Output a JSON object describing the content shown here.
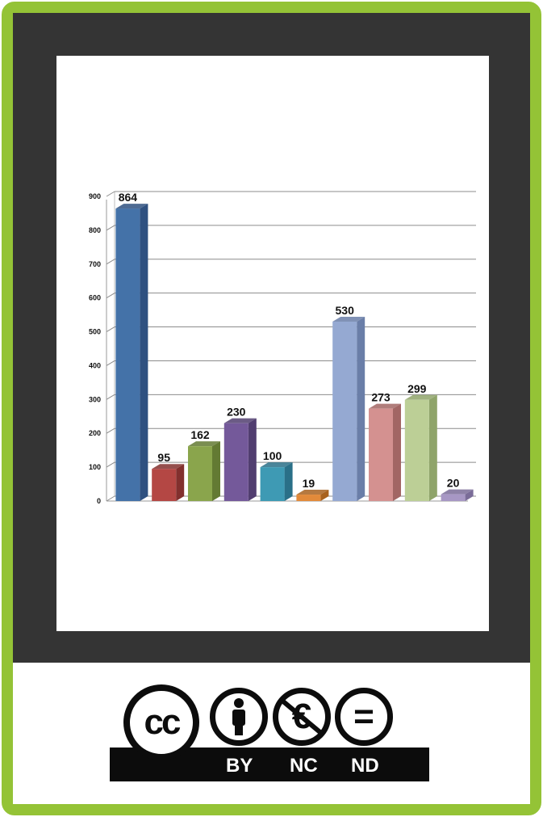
{
  "chart_data": {
    "type": "bar",
    "categories": [
      "",
      "",
      "",
      "",
      "",
      "",
      "",
      "",
      "",
      ""
    ],
    "values": [
      864,
      95,
      162,
      230,
      100,
      19,
      530,
      273,
      299,
      20
    ],
    "data_labels": [
      "864",
      "95",
      "162",
      "230",
      "100",
      "19",
      "530",
      "273",
      "299",
      "20"
    ],
    "colors": [
      "#4472a8",
      "#b44744",
      "#8aa54c",
      "#74599a",
      "#3e9ab4",
      "#e28a3a",
      "#95a9d2",
      "#d49190",
      "#bccf96",
      "#a797c4"
    ],
    "side_colors": [
      "#2f5180",
      "#82302e",
      "#637a33",
      "#513e70",
      "#2a7088",
      "#a8621f",
      "#6a7ea8",
      "#a26664",
      "#8fa46a",
      "#7a6c98"
    ],
    "ylim": [
      0,
      900
    ],
    "yticks": [
      0,
      100,
      200,
      300,
      400,
      500,
      600,
      700,
      800,
      900
    ],
    "ytick_labels": [
      "0",
      "100",
      "200",
      "300",
      "400",
      "500",
      "600",
      "700",
      "800",
      "900"
    ],
    "title": "",
    "xlabel": "",
    "ylabel": "",
    "grid": true
  },
  "license": {
    "cc_label": "cc",
    "by_label": "BY",
    "nc_label": "NC",
    "nd_label": "ND",
    "euro_symbol": "€",
    "equals_symbol": "="
  },
  "colors": {
    "frame_border": "#94c336",
    "dark_panel": "#343434",
    "grid_line": "#8c8c8c"
  }
}
